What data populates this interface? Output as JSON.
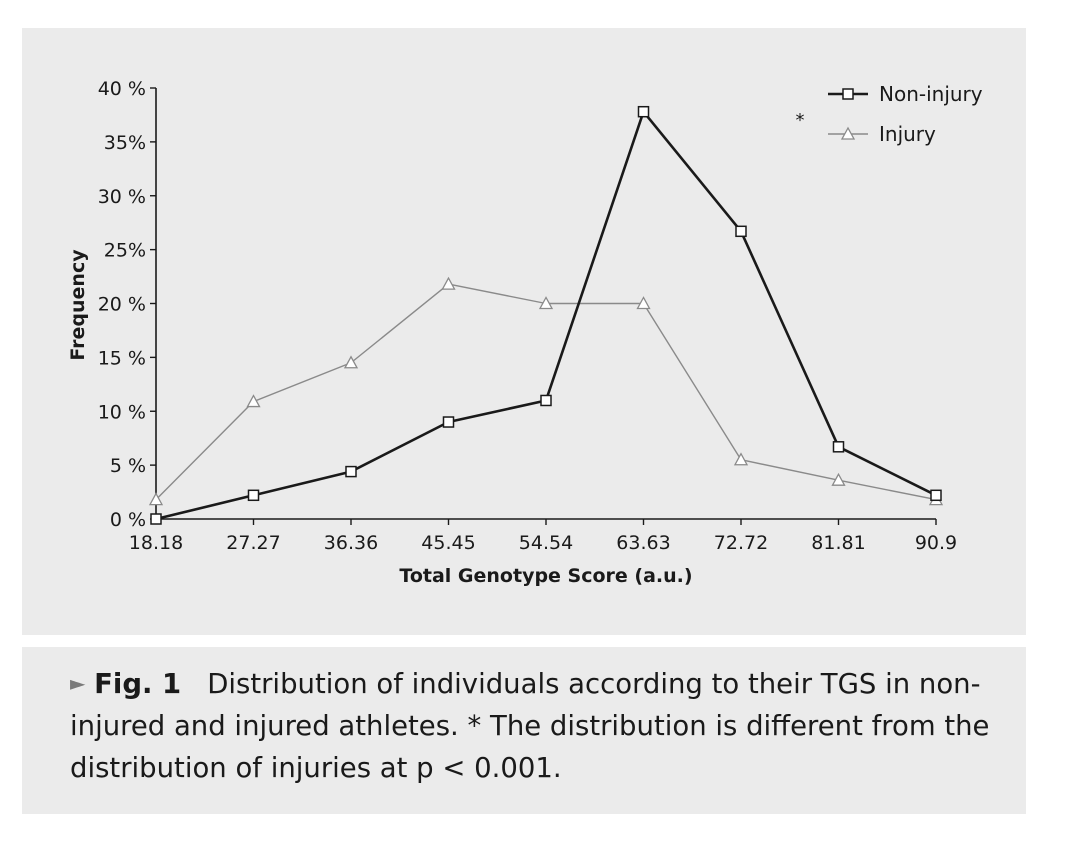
{
  "chart_data": {
    "type": "line",
    "title": "",
    "xlabel": "Total Genotype Score (a.u.)",
    "ylabel": "Frequency",
    "ylim": [
      0,
      40
    ],
    "grid": false,
    "legend_position": "top-right",
    "categories": [
      "18.18",
      "27.27",
      "36.36",
      "45.45",
      "54.54",
      "63.63",
      "72.72",
      "81.81",
      "90.9"
    ],
    "y_ticks": [
      "0 %",
      "5 %",
      "10 %",
      "15 %",
      "20 %",
      "25%",
      "30 %",
      "35%",
      "40 %"
    ],
    "series": [
      {
        "name": "Non-injury",
        "marker": "square",
        "color": "#1a1a1a",
        "values": [
          0,
          2.2,
          4.4,
          9,
          11,
          37.8,
          26.7,
          6.7,
          2.2
        ]
      },
      {
        "name": "Injury",
        "marker": "triangle",
        "color": "#8a8a8a",
        "values": [
          1.8,
          10.9,
          14.5,
          21.8,
          20,
          20,
          5.5,
          3.6,
          1.8
        ]
      }
    ],
    "annotation": "*"
  },
  "caption": {
    "arrow": "►",
    "label": "Fig. 1",
    "text": "Distribution of individuals according to their TGS in non-injured and injured athletes.  * The distribution is different from the distribution of injuries at p < 0.001."
  },
  "colors": {
    "panel_bg": "#ebebeb",
    "series_dark": "#1a1a1a",
    "series_light": "#8a8a8a"
  }
}
